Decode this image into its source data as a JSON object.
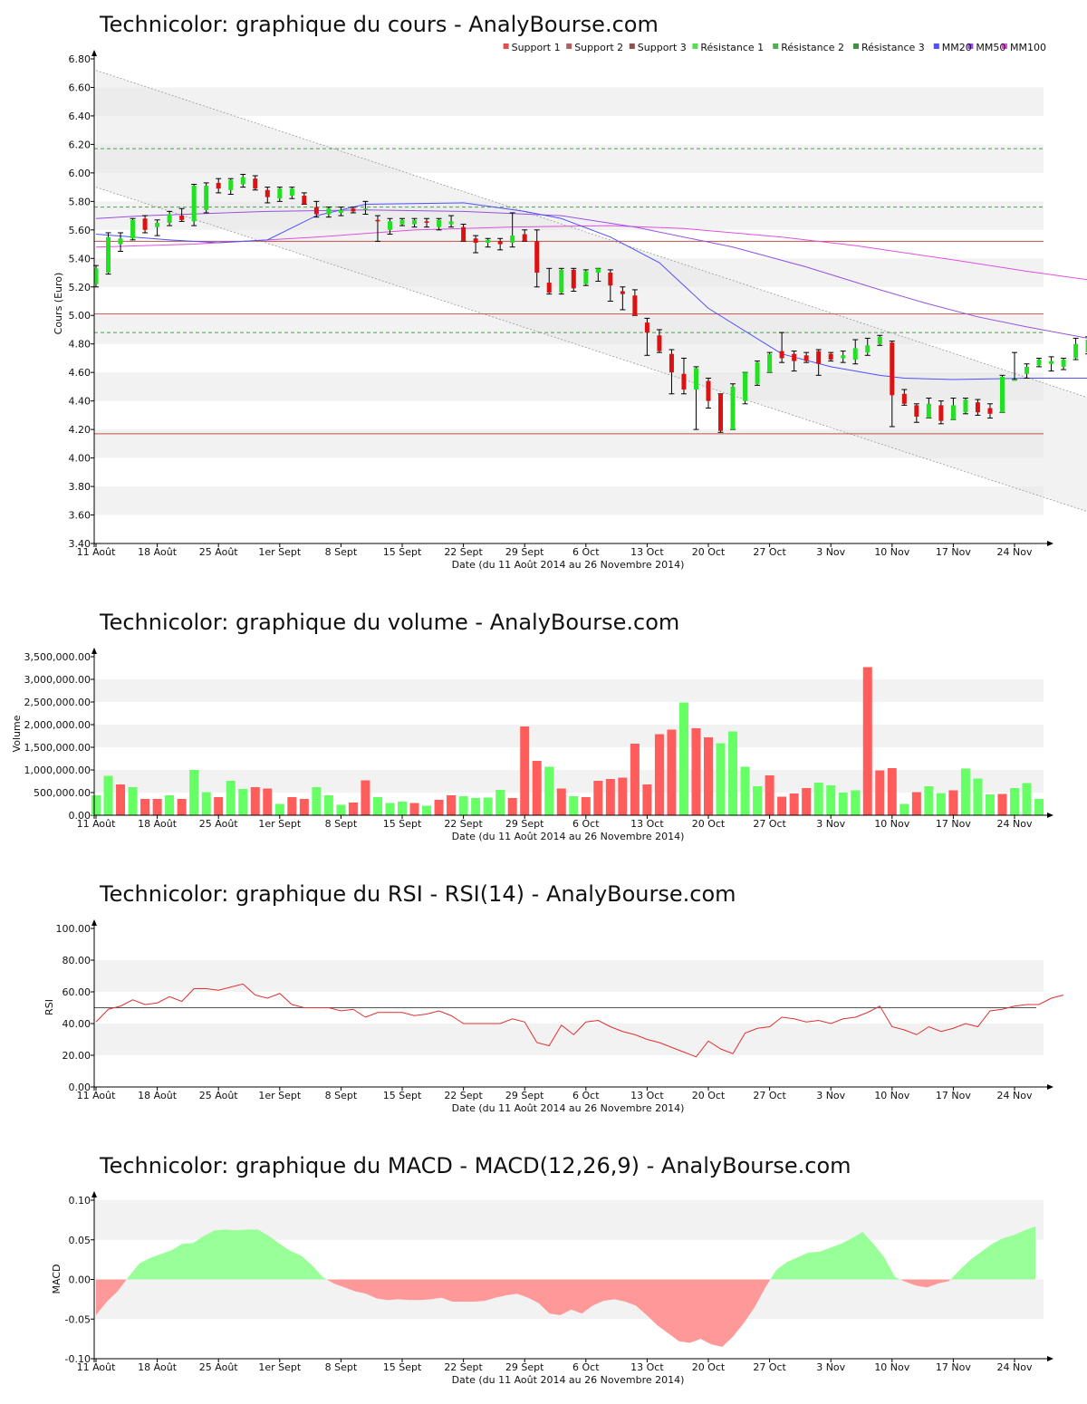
{
  "x_axis": {
    "ticks": [
      "11 Août",
      "18 Août",
      "25 Août",
      "1er Sept",
      "8 Sept",
      "15 Sept",
      "22 Sept",
      "29 Sept",
      "6 Oct",
      "13 Oct",
      "20 Oct",
      "27 Oct",
      "3 Nov",
      "10 Nov",
      "17 Nov",
      "24 Nov"
    ],
    "label": "Date (du 11 Août 2014 au 26 Novembre 2014)"
  },
  "chart_data": [
    {
      "id": "price",
      "type": "candlestick",
      "title": "Technicolor: graphique du cours - AnalyBourse.com",
      "ylabel": "Cours (Euro)",
      "ylim": [
        3.4,
        6.8
      ],
      "yticks": [
        "3.40",
        "3.60",
        "3.80",
        "4.00",
        "4.20",
        "4.40",
        "4.60",
        "4.80",
        "5.00",
        "5.20",
        "5.40",
        "5.60",
        "5.80",
        "6.00",
        "6.20",
        "6.40",
        "6.60",
        "6.80"
      ],
      "legend": [
        {
          "name": "Support 1",
          "color": "#e05050"
        },
        {
          "name": "Support 2",
          "color": "#b06060"
        },
        {
          "name": "Support 3",
          "color": "#905050"
        },
        {
          "name": "Résistance 1",
          "color": "#50e050"
        },
        {
          "name": "Résistance 2",
          "color": "#50b050"
        },
        {
          "name": "Résistance 3",
          "color": "#409040"
        },
        {
          "name": "MM20",
          "color": "#5050ff"
        },
        {
          "name": "MM50",
          "color": "#9a50e0"
        },
        {
          "name": "MM100",
          "color": "#e050e0"
        }
      ],
      "supports": [
        5.52,
        5.01,
        4.17
      ],
      "resistances": [
        6.17,
        5.76,
        4.88
      ],
      "candles": [
        [
          5.22,
          5.35,
          5.2,
          5.33
        ],
        [
          5.3,
          5.58,
          5.29,
          5.55
        ],
        [
          5.5,
          5.58,
          5.45,
          5.54
        ],
        [
          5.54,
          5.68,
          5.53,
          5.67
        ],
        [
          5.68,
          5.7,
          5.58,
          5.6
        ],
        [
          5.62,
          5.67,
          5.56,
          5.65
        ],
        [
          5.65,
          5.73,
          5.63,
          5.71
        ],
        [
          5.7,
          5.75,
          5.66,
          5.67
        ],
        [
          5.66,
          5.92,
          5.63,
          5.91
        ],
        [
          5.74,
          5.93,
          5.72,
          5.91
        ],
        [
          5.93,
          5.96,
          5.86,
          5.89
        ],
        [
          5.88,
          5.96,
          5.85,
          5.95
        ],
        [
          5.92,
          5.99,
          5.9,
          5.97
        ],
        [
          5.96,
          5.98,
          5.88,
          5.89
        ],
        [
          5.88,
          5.9,
          5.79,
          5.83
        ],
        [
          5.82,
          5.9,
          5.8,
          5.89
        ],
        [
          5.84,
          5.9,
          5.82,
          5.89
        ],
        [
          5.84,
          5.86,
          5.78,
          5.78
        ],
        [
          5.76,
          5.8,
          5.69,
          5.71
        ],
        [
          5.71,
          5.76,
          5.69,
          5.75
        ],
        [
          5.72,
          5.76,
          5.7,
          5.74
        ],
        [
          5.75,
          5.76,
          5.72,
          5.73
        ],
        [
          5.74,
          5.8,
          5.71,
          5.75
        ],
        [
          5.67,
          5.7,
          5.52,
          5.66
        ],
        [
          5.6,
          5.68,
          5.57,
          5.66
        ],
        [
          5.64,
          5.68,
          5.63,
          5.67
        ],
        [
          5.64,
          5.68,
          5.62,
          5.67
        ],
        [
          5.66,
          5.68,
          5.62,
          5.65
        ],
        [
          5.62,
          5.68,
          5.6,
          5.67
        ],
        [
          5.64,
          5.7,
          5.62,
          5.66
        ],
        [
          5.62,
          5.64,
          5.52,
          5.52
        ],
        [
          5.54,
          5.56,
          5.44,
          5.51
        ],
        [
          5.51,
          5.54,
          5.48,
          5.53
        ],
        [
          5.52,
          5.54,
          5.46,
          5.5
        ],
        [
          5.51,
          5.72,
          5.48,
          5.56
        ],
        [
          5.57,
          5.6,
          5.52,
          5.52
        ],
        [
          5.52,
          5.6,
          5.2,
          5.3
        ],
        [
          5.23,
          5.33,
          5.15,
          5.16
        ],
        [
          5.16,
          5.33,
          5.15,
          5.32
        ],
        [
          5.32,
          5.33,
          5.17,
          5.19
        ],
        [
          5.22,
          5.32,
          5.21,
          5.31
        ],
        [
          5.3,
          5.33,
          5.24,
          5.33
        ],
        [
          5.3,
          5.32,
          5.1,
          5.21
        ],
        [
          5.17,
          5.2,
          5.04,
          5.15
        ],
        [
          5.14,
          5.18,
          5.0,
          5.0
        ],
        [
          4.95,
          4.98,
          4.72,
          4.88
        ],
        [
          4.86,
          4.9,
          4.74,
          4.75
        ],
        [
          4.73,
          4.76,
          4.45,
          4.6
        ],
        [
          4.59,
          4.7,
          4.45,
          4.48
        ],
        [
          4.48,
          4.64,
          4.2,
          4.63
        ],
        [
          4.54,
          4.56,
          4.35,
          4.4
        ],
        [
          4.45,
          4.45,
          4.18,
          4.19
        ],
        [
          4.2,
          4.52,
          4.2,
          4.5
        ],
        [
          4.4,
          4.6,
          4.38,
          4.6
        ],
        [
          4.52,
          4.68,
          4.51,
          4.67
        ],
        [
          4.6,
          4.74,
          4.6,
          4.73
        ],
        [
          4.75,
          4.88,
          4.67,
          4.7
        ],
        [
          4.73,
          4.75,
          4.61,
          4.68
        ],
        [
          4.72,
          4.74,
          4.67,
          4.68
        ],
        [
          4.75,
          4.76,
          4.58,
          4.66
        ],
        [
          4.73,
          4.74,
          4.68,
          4.69
        ],
        [
          4.7,
          4.75,
          4.67,
          4.72
        ],
        [
          4.69,
          4.83,
          4.66,
          4.77
        ],
        [
          4.74,
          4.84,
          4.72,
          4.79
        ],
        [
          4.8,
          4.86,
          4.79,
          4.85
        ],
        [
          4.81,
          4.82,
          4.22,
          4.44
        ],
        [
          4.45,
          4.48,
          4.37,
          4.38
        ],
        [
          4.37,
          4.38,
          4.25,
          4.29
        ],
        [
          4.28,
          4.42,
          4.28,
          4.38
        ],
        [
          4.37,
          4.4,
          4.24,
          4.26
        ],
        [
          4.27,
          4.42,
          4.27,
          4.37
        ],
        [
          4.32,
          4.42,
          4.31,
          4.41
        ],
        [
          4.39,
          4.41,
          4.3,
          4.32
        ],
        [
          4.35,
          4.38,
          4.28,
          4.31
        ],
        [
          4.32,
          4.58,
          4.32,
          4.57
        ],
        [
          4.55,
          4.74,
          4.55,
          4.55
        ],
        [
          4.59,
          4.66,
          4.56,
          4.64
        ],
        [
          4.65,
          4.7,
          4.64,
          4.69
        ],
        [
          4.66,
          4.71,
          4.61,
          4.68
        ],
        [
          4.64,
          4.7,
          4.62,
          4.69
        ],
        [
          4.7,
          4.84,
          4.69,
          4.8
        ],
        [
          4.74,
          4.85,
          4.73,
          4.83
        ]
      ],
      "mm20": [
        [
          0,
          5.57
        ],
        [
          6,
          5.53
        ],
        [
          10,
          5.51
        ],
        [
          14,
          5.53
        ],
        [
          18,
          5.7
        ],
        [
          22,
          5.78
        ],
        [
          30,
          5.79
        ],
        [
          35,
          5.73
        ],
        [
          38,
          5.68
        ],
        [
          42,
          5.55
        ],
        [
          46,
          5.37
        ],
        [
          50,
          5.05
        ],
        [
          56,
          4.73
        ],
        [
          60,
          4.64
        ],
        [
          64,
          4.58
        ],
        [
          66,
          4.56
        ],
        [
          70,
          4.55
        ],
        [
          76,
          4.56
        ],
        [
          81,
          4.56
        ]
      ],
      "mm50": [
        [
          0,
          5.68
        ],
        [
          4,
          5.7
        ],
        [
          14,
          5.73
        ],
        [
          22,
          5.74
        ],
        [
          30,
          5.73
        ],
        [
          38,
          5.7
        ],
        [
          44,
          5.62
        ],
        [
          52,
          5.48
        ],
        [
          58,
          5.34
        ],
        [
          64,
          5.18
        ],
        [
          68,
          5.08
        ],
        [
          72,
          4.99
        ],
        [
          76,
          4.92
        ],
        [
          81,
          4.84
        ]
      ],
      "mm100": [
        [
          0,
          5.48
        ],
        [
          8,
          5.5
        ],
        [
          18,
          5.55
        ],
        [
          26,
          5.6
        ],
        [
          34,
          5.62
        ],
        [
          42,
          5.63
        ],
        [
          48,
          5.61
        ],
        [
          56,
          5.55
        ],
        [
          62,
          5.49
        ],
        [
          70,
          5.39
        ],
        [
          76,
          5.31
        ],
        [
          81,
          5.25
        ]
      ],
      "channel_upper": [
        [
          0,
          6.72
        ],
        [
          81.8,
          4.4
        ]
      ],
      "channel_lower": [
        [
          0,
          5.9
        ],
        [
          81.8,
          3.6
        ]
      ]
    },
    {
      "id": "volume",
      "type": "bar",
      "title": "Technicolor: graphique du volume - AnalyBourse.com",
      "ylabel": "Volume",
      "ylim": [
        0,
        3500000
      ],
      "yticks": [
        "0.00",
        "500,000.00",
        "1,000,000.00",
        "1,500,000.00",
        "2,000,000.00",
        "2,500,000.00",
        "3,000,000.00",
        "3,500,000.00"
      ],
      "values": [
        440000,
        870000,
        680000,
        620000,
        360000,
        360000,
        440000,
        360000,
        1000000,
        510000,
        400000,
        760000,
        580000,
        620000,
        590000,
        250000,
        400000,
        360000,
        620000,
        440000,
        230000,
        280000,
        770000,
        400000,
        270000,
        300000,
        270000,
        210000,
        340000,
        440000,
        420000,
        380000,
        390000,
        560000,
        380000,
        1960000,
        1200000,
        1070000,
        590000,
        420000,
        400000,
        760000,
        800000,
        830000,
        1580000,
        680000,
        1790000,
        1890000,
        2490000,
        1920000,
        1720000,
        1590000,
        1850000,
        1070000,
        640000,
        880000,
        410000,
        480000,
        600000,
        720000,
        660000,
        500000,
        550000,
        3270000,
        990000,
        1040000,
        250000,
        510000,
        640000,
        490000,
        550000,
        1030000,
        810000,
        460000,
        470000,
        600000,
        710000,
        360000
      ],
      "up": [
        1,
        1,
        0,
        1,
        0,
        0,
        1,
        0,
        1,
        1,
        0,
        1,
        1,
        0,
        0,
        1,
        0,
        0,
        1,
        1,
        1,
        0,
        0,
        1,
        1,
        1,
        0,
        1,
        0,
        0,
        1,
        1,
        1,
        1,
        0,
        0,
        0,
        1,
        0,
        1,
        0,
        0,
        0,
        0,
        0,
        0,
        0,
        0,
        1,
        0,
        0,
        1,
        1,
        1,
        1,
        0,
        0,
        0,
        0,
        1,
        1,
        1,
        1,
        0,
        0,
        0,
        1,
        0,
        1,
        1,
        0,
        1,
        1,
        1,
        0,
        1,
        1,
        1
      ]
    },
    {
      "id": "rsi",
      "type": "line",
      "title": "Technicolor: graphique du RSI - RSI(14) - AnalyBourse.com",
      "ylabel": "RSI",
      "ylim": [
        0,
        100
      ],
      "yticks": [
        "0.00",
        "20.00",
        "40.00",
        "60.00",
        "80.00",
        "100.00"
      ],
      "reference": 50,
      "values": [
        41,
        49,
        51,
        55,
        52,
        53,
        57,
        54,
        62,
        62,
        61,
        63,
        65,
        58,
        56,
        59,
        52,
        50,
        50,
        50,
        48,
        49,
        44,
        47,
        47,
        47,
        45,
        46,
        48,
        45,
        40,
        40,
        40,
        40,
        43,
        41,
        28,
        26,
        39,
        33,
        41,
        42,
        38,
        35,
        33,
        30,
        28,
        25,
        22,
        19,
        29,
        24,
        21,
        34,
        37,
        38,
        44,
        43,
        41,
        42,
        40,
        43,
        44,
        47,
        51,
        38,
        36,
        33,
        38,
        35,
        37,
        40,
        38,
        48,
        49,
        51,
        52,
        52,
        56,
        58
      ]
    },
    {
      "id": "macd",
      "type": "area",
      "title": "Technicolor: graphique du MACD - MACD(12,26,9) - AnalyBourse.com",
      "ylabel": "MACD",
      "ylim": [
        -0.1,
        0.1
      ],
      "yticks": [
        "-0.10",
        "-0.05",
        "0.00",
        "0.05",
        "0.10"
      ],
      "values": [
        -0.045,
        -0.028,
        -0.015,
        0.003,
        0.02,
        0.027,
        0.032,
        0.037,
        0.045,
        0.046,
        0.055,
        0.062,
        0.063,
        0.062,
        0.063,
        0.063,
        0.055,
        0.045,
        0.036,
        0.03,
        0.018,
        0.003,
        -0.005,
        -0.01,
        -0.015,
        -0.018,
        -0.024,
        -0.026,
        -0.025,
        -0.026,
        -0.026,
        -0.025,
        -0.023,
        -0.028,
        -0.028,
        -0.028,
        -0.027,
        -0.023,
        -0.02,
        -0.018,
        -0.023,
        -0.03,
        -0.043,
        -0.045,
        -0.038,
        -0.043,
        -0.033,
        -0.027,
        -0.025,
        -0.028,
        -0.033,
        -0.045,
        -0.058,
        -0.068,
        -0.078,
        -0.08,
        -0.075,
        -0.082,
        -0.085,
        -0.072,
        -0.055,
        -0.035,
        -0.01,
        0.012,
        0.022,
        0.028,
        0.034,
        0.035,
        0.04,
        0.045,
        0.052,
        0.06,
        0.045,
        0.028,
        0.003,
        -0.003,
        -0.008,
        -0.01,
        -0.005,
        -0.002,
        0.012,
        0.025,
        0.035,
        0.045,
        0.052,
        0.056,
        0.062,
        0.067
      ]
    }
  ]
}
